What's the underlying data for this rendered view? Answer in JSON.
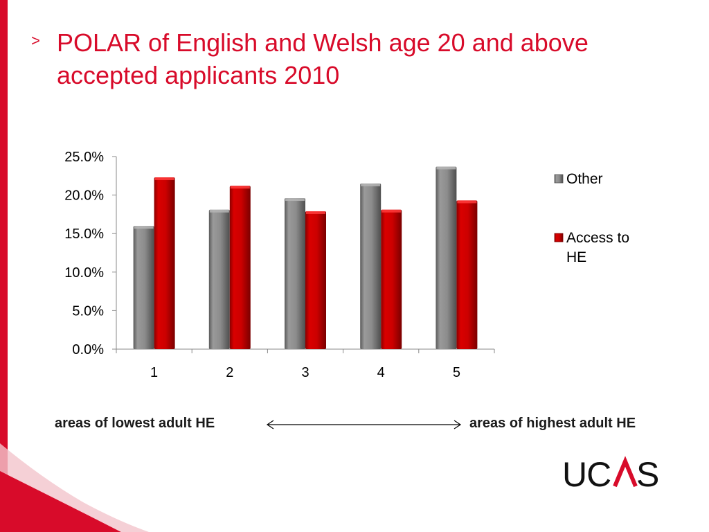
{
  "slide": {
    "title_marker": ">",
    "title": "POLAR of English and Welsh age 20 and above accepted applicants 2010",
    "caption_left": "areas of lowest adult HE",
    "caption_right": "areas of highest adult HE",
    "logo": "UCAS"
  },
  "colors": {
    "brand_red": "#d80b2a",
    "other_series": "#808080",
    "access_series": "#cc0000"
  },
  "chart_data": {
    "type": "bar",
    "title": "",
    "xlabel": "",
    "ylabel": "",
    "categories": [
      "1",
      "2",
      "3",
      "4",
      "5"
    ],
    "series": [
      {
        "name": "Other",
        "values": [
          16.0,
          18.1,
          19.6,
          21.5,
          23.7
        ]
      },
      {
        "name": "Access to HE",
        "values": [
          22.3,
          21.2,
          17.9,
          18.1,
          19.3
        ]
      }
    ],
    "ylim": [
      0,
      25
    ],
    "yticks": [
      "0.0%",
      "5.0%",
      "10.0%",
      "15.0%",
      "20.0%",
      "25.0%"
    ],
    "ytick_values": [
      0,
      5,
      10,
      15,
      20,
      25
    ],
    "legend": [
      "Other",
      "Access to HE"
    ],
    "legend_position": "right",
    "grid": false
  }
}
